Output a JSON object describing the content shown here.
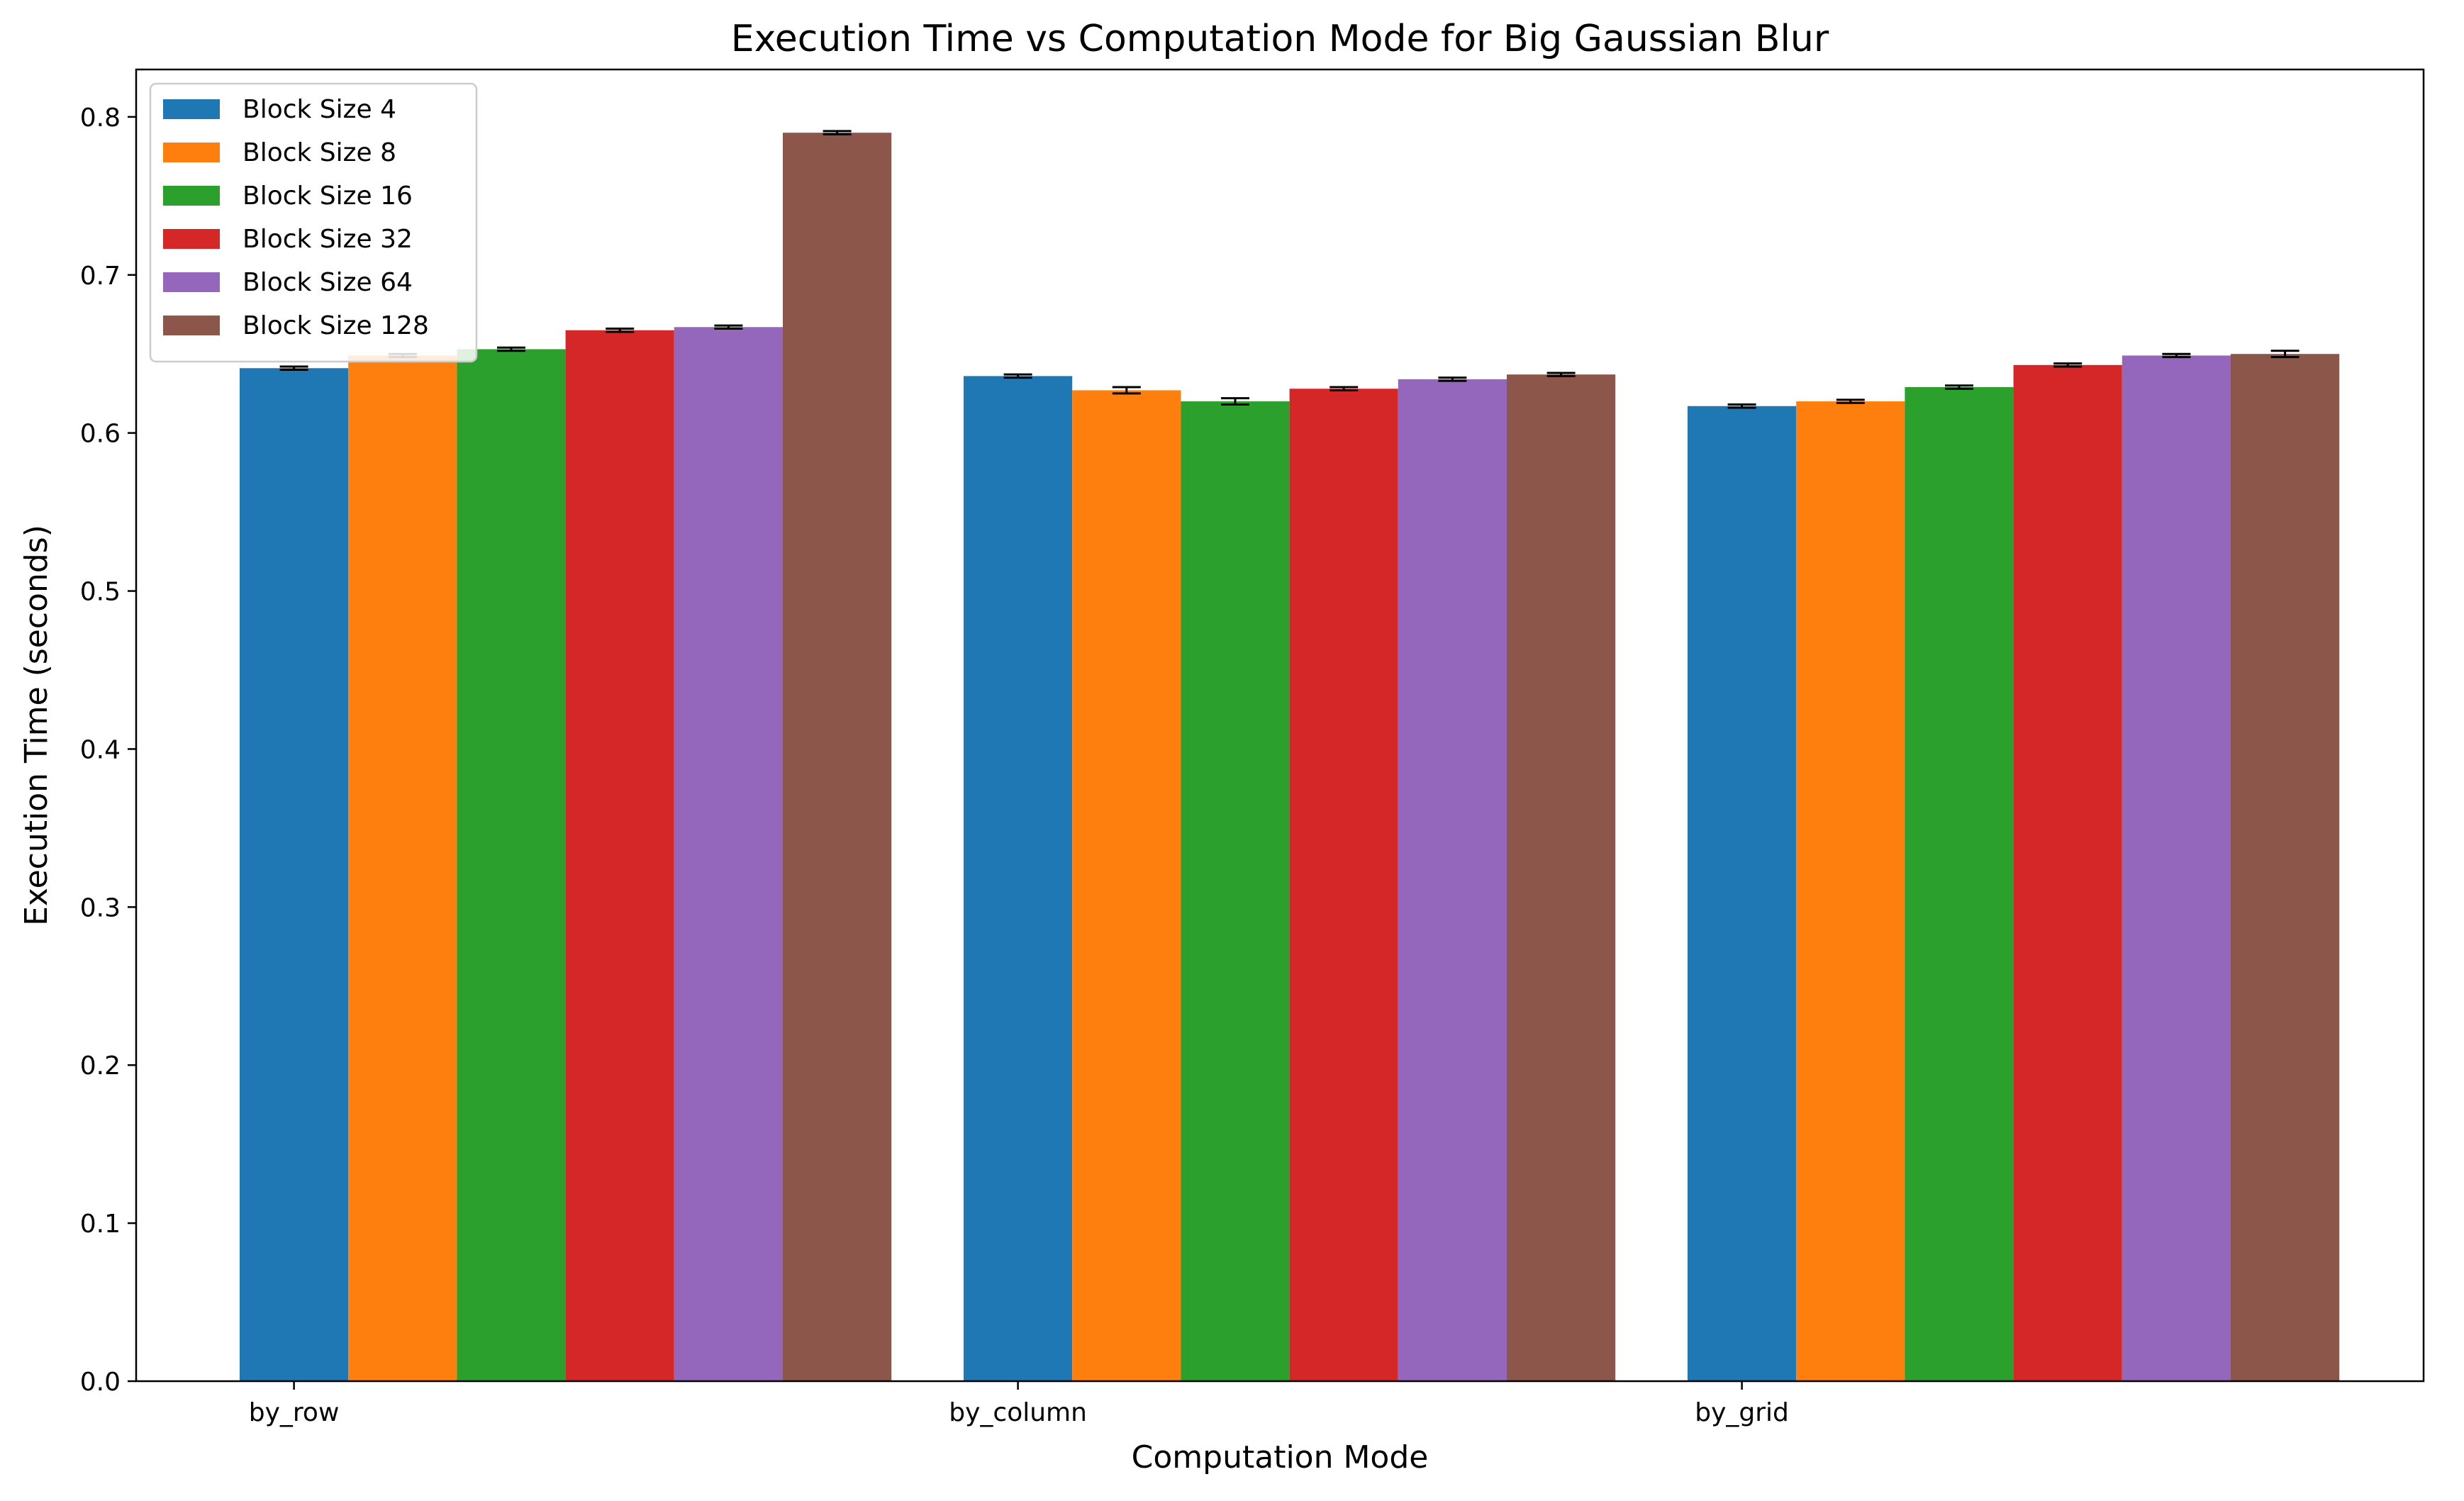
{
  "chart_data": {
    "type": "bar",
    "title": "Execution Time vs Computation Mode for Big Gaussian Blur",
    "xlabel": "Computation Mode",
    "ylabel": "Execution Time (seconds)",
    "categories": [
      "by_row",
      "by_column",
      "by_grid"
    ],
    "ylim": [
      0,
      0.83
    ],
    "yticks": [
      0.0,
      0.1,
      0.2,
      0.3,
      0.4,
      0.5,
      0.6,
      0.7,
      0.8
    ],
    "ytick_labels": [
      "0.0",
      "0.1",
      "0.2",
      "0.3",
      "0.4",
      "0.5",
      "0.6",
      "0.7",
      "0.8"
    ],
    "grid": false,
    "error_bars": true,
    "legend_position": "top-left",
    "series": [
      {
        "name": "Block Size 4",
        "color": "#1f77b4",
        "values": [
          0.641,
          0.636,
          0.617
        ],
        "errors": [
          0.001,
          0.001,
          0.001
        ]
      },
      {
        "name": "Block Size 8",
        "color": "#ff7f0e",
        "values": [
          0.649,
          0.627,
          0.62
        ],
        "errors": [
          0.001,
          0.002,
          0.001
        ]
      },
      {
        "name": "Block Size 16",
        "color": "#2ca02c",
        "values": [
          0.653,
          0.62,
          0.629
        ],
        "errors": [
          0.001,
          0.002,
          0.001
        ]
      },
      {
        "name": "Block Size 32",
        "color": "#d62728",
        "values": [
          0.665,
          0.628,
          0.643
        ],
        "errors": [
          0.001,
          0.001,
          0.001
        ]
      },
      {
        "name": "Block Size 64",
        "color": "#9467bd",
        "values": [
          0.667,
          0.634,
          0.649
        ],
        "errors": [
          0.001,
          0.001,
          0.001
        ]
      },
      {
        "name": "Block Size 128",
        "color": "#8c564b",
        "values": [
          0.79,
          0.637,
          0.65
        ],
        "errors": [
          0.001,
          0.001,
          0.002
        ]
      }
    ]
  }
}
